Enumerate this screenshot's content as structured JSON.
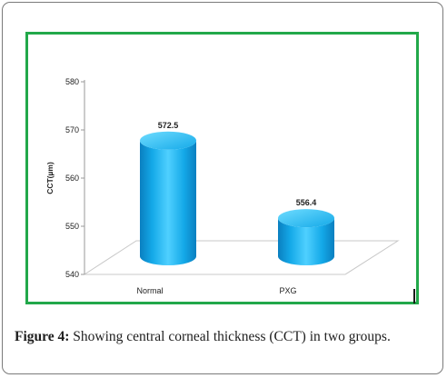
{
  "figure": {
    "caption_label": "Figure 4:",
    "caption_text": " Showing central corneal thickness (CCT) in two groups."
  },
  "colors": {
    "bar_light": "#4fd0ff",
    "bar_mid": "#14a9e8",
    "bar_dark": "#0a7fc0",
    "bar_top": "#6fdcff",
    "frame_green": "#22a84a",
    "floor_line": "#c8c8c8"
  },
  "chart_data": {
    "type": "bar",
    "style": "3d-cylinder",
    "title": "",
    "xlabel": "",
    "ylabel": "CCT(µm)",
    "ylim": [
      540,
      580
    ],
    "yticks": [
      540,
      550,
      560,
      570,
      580
    ],
    "categories": [
      "Normal",
      "PXG"
    ],
    "values": [
      572.5,
      556.4
    ],
    "data_labels": [
      "572.5",
      "556.4"
    ],
    "grid": false,
    "legend": "none"
  }
}
